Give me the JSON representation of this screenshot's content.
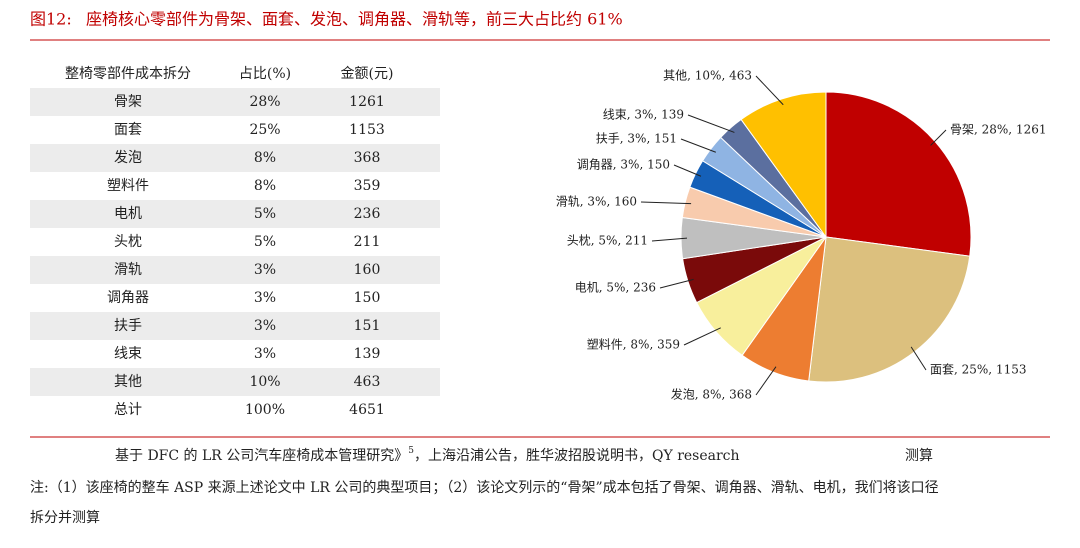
{
  "figure_label": "图12:",
  "title": "座椅核心零部件为骨架、面套、发泡、调角器、滑轨等，前三大占比约 61%",
  "table": {
    "header": [
      "整椅零部件成本拆分",
      "占比(%)",
      "金额(元)"
    ],
    "rows": [
      [
        "骨架",
        "28%",
        1261
      ],
      [
        "面套",
        "25%",
        1153
      ],
      [
        "发泡",
        "8%",
        368
      ],
      [
        "塑料件",
        "8%",
        359
      ],
      [
        "电机",
        "5%",
        236
      ],
      [
        "头枕",
        "5%",
        211
      ],
      [
        "滑轨",
        "3%",
        160
      ],
      [
        "调角器",
        "3%",
        150
      ],
      [
        "扶手",
        "3%",
        151
      ],
      [
        "线束",
        "3%",
        139
      ],
      [
        "其他",
        "10%",
        463
      ],
      [
        "总计",
        "100%",
        4651
      ]
    ]
  },
  "chart_data": {
    "type": "pie",
    "values": [
      1261,
      1153,
      368,
      359,
      236,
      211,
      160,
      150,
      151,
      139,
      463
    ],
    "value_labels": [
      "骨架, 28%, 1261",
      "面套, 25%, 1153",
      "发泡, 8%, 368",
      "塑料件, 8%, 359",
      "电机, 5%, 236",
      "头枕, 5%, 211",
      "滑轨, 3%, 160",
      "调角器, 3%, 150",
      "扶手, 3%, 151",
      "线束, 3%, 139",
      "其他, 10%, 463"
    ],
    "colors": [
      "#c00000",
      "#dcc07e",
      "#ed7d31",
      "#f8ef9c",
      "#7a0a0a",
      "#bfbfbf",
      "#f8cbad",
      "#1560b8",
      "#8fb4e3",
      "#5b6f9f",
      "#ffc000"
    ]
  },
  "source": [
    "基于 DFC 的 LR 公司汽车座椅成本管理研究》",
    "5",
    "，上海沿浦公告，胜华波招股说明书，QY research",
    "测算"
  ],
  "note": [
    "注:（1）该座椅的整车 ASP 来源上述论文中 LR 公司的典型项目；（2）该论文列示的“骨架”成本包括了骨架、调角器、滑轨、电机，我们将该口径",
    "拆分并测算"
  ]
}
